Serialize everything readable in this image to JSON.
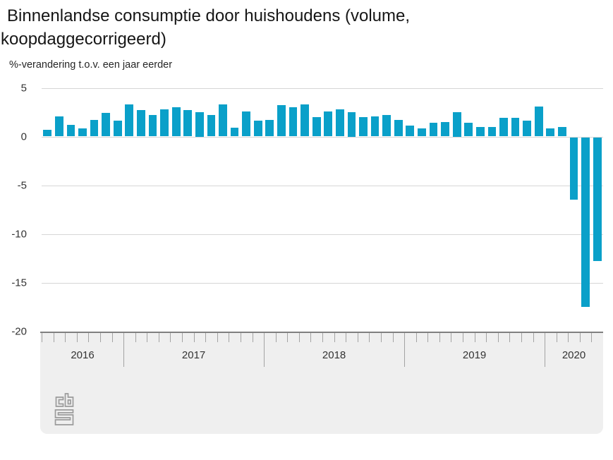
{
  "header": {
    "title": "Binnenlandse consumptie door huishoudens (volume, koopdaggecorrigeerd)",
    "subtitle": "%-verandering t.o.v. een jaar eerder"
  },
  "axis": {
    "y_tick_labels": [
      "5",
      "0",
      "-5",
      "-10",
      "-15",
      "-20"
    ],
    "y_ticks": [
      5,
      0,
      -5,
      -10,
      -15,
      -20
    ],
    "x_year_labels": [
      "2016",
      "2017",
      "2018",
      "2019",
      "2020"
    ]
  },
  "icons": {
    "logo": "cbs-logo"
  },
  "colors": {
    "bar": "#0aa0c9",
    "gridline": "#d6d6d6",
    "axis_band_bg": "#efefef",
    "axis_band_border": "#7f7f7f",
    "tick": "#a3a3a3",
    "year_separator": "#a3a3a3",
    "title_text": "#161616",
    "axis_text": "#333333",
    "logo": "#9b9b9b"
  },
  "chart_data": {
    "type": "bar",
    "title": "Binnenlandse consumptie door huishoudens (volume, koopdaggecorrigeerd)",
    "ylabel": "%-verandering t.o.v. een jaar eerder",
    "unit": "%",
    "ylim": [
      -20,
      5
    ],
    "yticks": [
      5,
      0,
      -5,
      -10,
      -15,
      -20
    ],
    "grid": "horizontal",
    "legend": "none",
    "frequency": "monthly",
    "years": [
      {
        "label": "2016",
        "n_months": 7
      },
      {
        "label": "2017",
        "n_months": 12
      },
      {
        "label": "2018",
        "n_months": 12
      },
      {
        "label": "2019",
        "n_months": 12
      },
      {
        "label": "2020",
        "n_months": 5
      }
    ],
    "months": [
      "2016-06",
      "2016-07",
      "2016-08",
      "2016-09",
      "2016-10",
      "2016-11",
      "2016-12",
      "2017-01",
      "2017-02",
      "2017-03",
      "2017-04",
      "2017-05",
      "2017-06",
      "2017-07",
      "2017-08",
      "2017-09",
      "2017-10",
      "2017-11",
      "2017-12",
      "2018-01",
      "2018-02",
      "2018-03",
      "2018-04",
      "2018-05",
      "2018-06",
      "2018-07",
      "2018-08",
      "2018-09",
      "2018-10",
      "2018-11",
      "2018-12",
      "2019-01",
      "2019-02",
      "2019-03",
      "2019-04",
      "2019-05",
      "2019-06",
      "2019-07",
      "2019-08",
      "2019-09",
      "2019-10",
      "2019-11",
      "2019-12",
      "2020-01",
      "2020-02",
      "2020-03",
      "2020-04",
      "2020-05"
    ],
    "values": [
      0.7,
      2.1,
      1.2,
      0.8,
      1.7,
      2.4,
      1.6,
      3.3,
      2.7,
      2.2,
      2.8,
      3.0,
      2.7,
      2.5,
      2.2,
      3.3,
      0.9,
      2.6,
      1.6,
      1.7,
      3.2,
      3.0,
      3.3,
      2.0,
      2.6,
      2.8,
      2.5,
      2.0,
      2.1,
      2.2,
      1.7,
      1.1,
      0.8,
      1.4,
      1.5,
      2.5,
      1.4,
      1.0,
      1.0,
      1.9,
      1.9,
      1.6,
      3.1,
      0.8,
      1.0,
      -6.4,
      -17.4,
      -12.7
    ]
  }
}
